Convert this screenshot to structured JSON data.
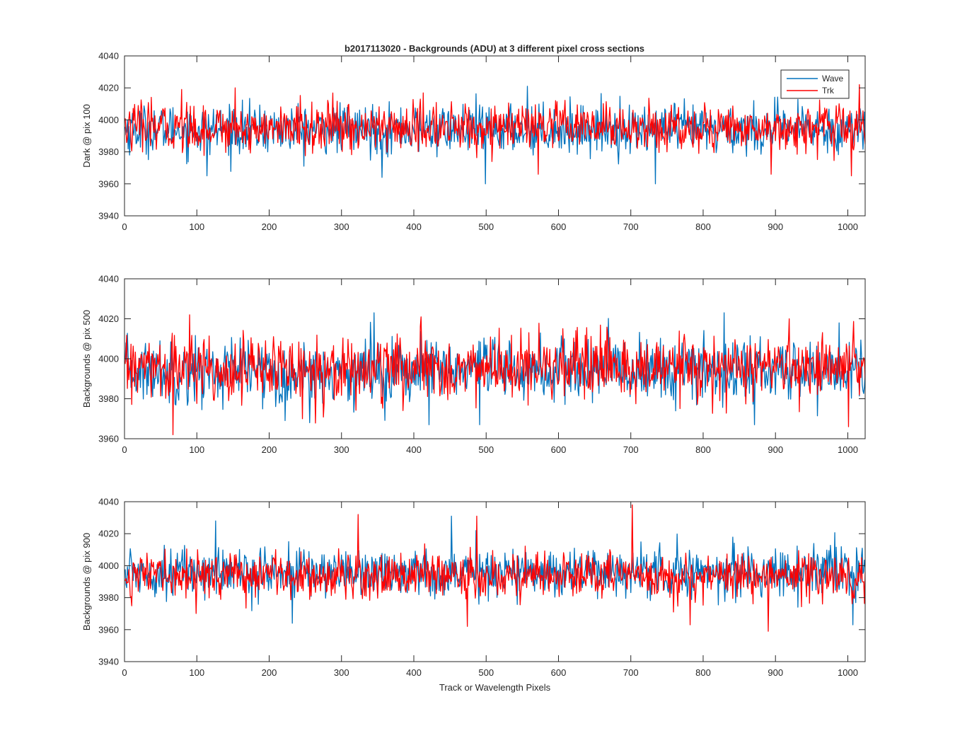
{
  "title": "b2017113020 - Backgrounds (ADU) at 3 different pixel cross sections",
  "colors": {
    "wave": "#0072BD",
    "trk": "#FF0000",
    "axis": "#262626"
  },
  "chart_data": [
    {
      "type": "line",
      "title": "b2017113020 - Backgrounds (ADU) at 3 different pixel cross sections",
      "xlabel": "",
      "ylabel": "Dark @ pix 100",
      "xlim": [
        0,
        1024
      ],
      "ylim": [
        3940,
        4040
      ],
      "xticks": [
        "0",
        "100",
        "200",
        "300",
        "400",
        "500",
        "600",
        "700",
        "800",
        "900",
        "1000"
      ],
      "yticks": [
        "3940",
        "3960",
        "3980",
        "4000",
        "4020",
        "4040"
      ],
      "grid": false,
      "legend": {
        "placement": "top-right",
        "entries": [
          "Wave",
          "Trk"
        ]
      },
      "series": [
        {
          "name": "Wave",
          "n_points": 1024,
          "mean": 3994,
          "std": 7.5,
          "min": 3960,
          "max": 4021,
          "peaks": [
            [
              556,
              4021
            ],
            [
              733,
              3960
            ],
            [
              498,
              3960
            ],
            [
              355,
              3964
            ],
            [
              113,
              3965
            ]
          ]
        },
        {
          "name": "Trk",
          "n_points": 1024,
          "mean": 3995,
          "std": 7.5,
          "min": 3965,
          "max": 4022,
          "peaks": [
            [
              1015,
              4022
            ],
            [
              152,
              4020
            ],
            [
              78,
              4019
            ],
            [
              1004,
              3965
            ],
            [
              571,
              3966
            ],
            [
              893,
              3966
            ]
          ]
        }
      ]
    },
    {
      "type": "line",
      "title": "",
      "xlabel": "",
      "ylabel": "Backgrounds @ pix 500",
      "xlim": [
        0,
        1024
      ],
      "ylim": [
        3960,
        4040
      ],
      "xticks": [
        "0",
        "100",
        "200",
        "300",
        "400",
        "500",
        "600",
        "700",
        "800",
        "900",
        "1000"
      ],
      "yticks": [
        "3960",
        "3980",
        "4000",
        "4020",
        "4040"
      ],
      "grid": false,
      "series": [
        {
          "name": "Wave",
          "n_points": 1024,
          "mean": 3994,
          "std": 8,
          "min": 3967,
          "max": 4023,
          "peaks": [
            [
              344,
              4023
            ],
            [
              828,
              4023
            ],
            [
              870,
              3967
            ],
            [
              420,
              3967
            ],
            [
              490,
              3967
            ]
          ]
        },
        {
          "name": "Trk",
          "n_points": 1024,
          "mean": 3995,
          "std": 8,
          "min": 3962,
          "max": 4022,
          "peaks": [
            [
              89,
              4022
            ],
            [
              66,
              3962
            ],
            [
              1000,
              3966
            ],
            [
              918,
              4020
            ],
            [
              245,
              3970
            ]
          ]
        }
      ]
    },
    {
      "type": "line",
      "title": "",
      "xlabel": "Track or Wavelength Pixels",
      "ylabel": "Backgrounds @ pix 900",
      "xlim": [
        0,
        1024
      ],
      "ylim": [
        3940,
        4040
      ],
      "xticks": [
        "0",
        "100",
        "200",
        "300",
        "400",
        "500",
        "600",
        "700",
        "800",
        "900",
        "1000"
      ],
      "yticks": [
        "3940",
        "3960",
        "3980",
        "4000",
        "4020",
        "4040"
      ],
      "grid": false,
      "series": [
        {
          "name": "Wave",
          "n_points": 1024,
          "mean": 3996,
          "std": 7.5,
          "min": 3963,
          "max": 4031,
          "peaks": [
            [
              451,
              4031
            ],
            [
              125,
              4028
            ],
            [
              1006,
              3963
            ],
            [
              231,
              3964
            ]
          ]
        },
        {
          "name": "Trk",
          "n_points": 1024,
          "mean": 3994,
          "std": 7,
          "min": 3959,
          "max": 4038,
          "peaks": [
            [
              701,
              4038
            ],
            [
              322,
              4032
            ],
            [
              486,
              4031
            ],
            [
              889,
              3959
            ],
            [
              473,
              3962
            ],
            [
              781,
              3963
            ]
          ]
        }
      ]
    }
  ]
}
